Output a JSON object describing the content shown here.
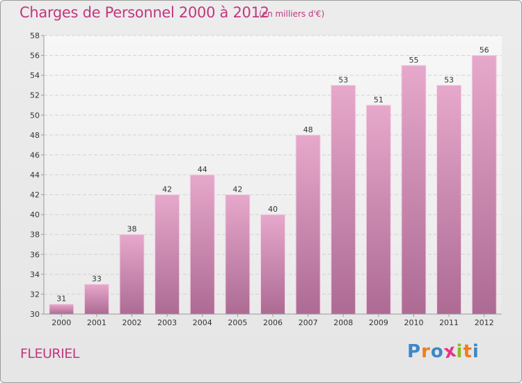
{
  "header": {
    "title": "Charges de Personnel 2000 à 2012",
    "unit": "(en milliers d'€)"
  },
  "footer": {
    "commune": "FLEURIEL",
    "logo_text": "Proxiti"
  },
  "colors": {
    "accent": "#c2377e",
    "bar_top": "#e6a8cb",
    "bar_bottom": "#ad6b94",
    "logo_letters": [
      "#3d87c9",
      "#f07c1a",
      "#3d87c9",
      "#e8318a",
      "#8dbb24",
      "#f07c1a",
      "#3d87c9"
    ]
  },
  "chart_data": {
    "type": "bar",
    "title": "Charges de Personnel 2000 à 2012",
    "subtitle": "(en milliers d'€)",
    "categories": [
      "2000",
      "2001",
      "2002",
      "2003",
      "2004",
      "2005",
      "2006",
      "2007",
      "2008",
      "2009",
      "2010",
      "2011",
      "2012"
    ],
    "values": [
      31,
      33,
      38,
      42,
      44,
      42,
      40,
      48,
      53,
      51,
      55,
      53,
      56
    ],
    "ylim": [
      30,
      58
    ],
    "yticks": [
      30,
      32,
      34,
      36,
      38,
      40,
      42,
      44,
      46,
      48,
      50,
      52,
      54,
      56,
      58
    ],
    "grid": "horizontal",
    "xlabel": "",
    "ylabel": ""
  }
}
